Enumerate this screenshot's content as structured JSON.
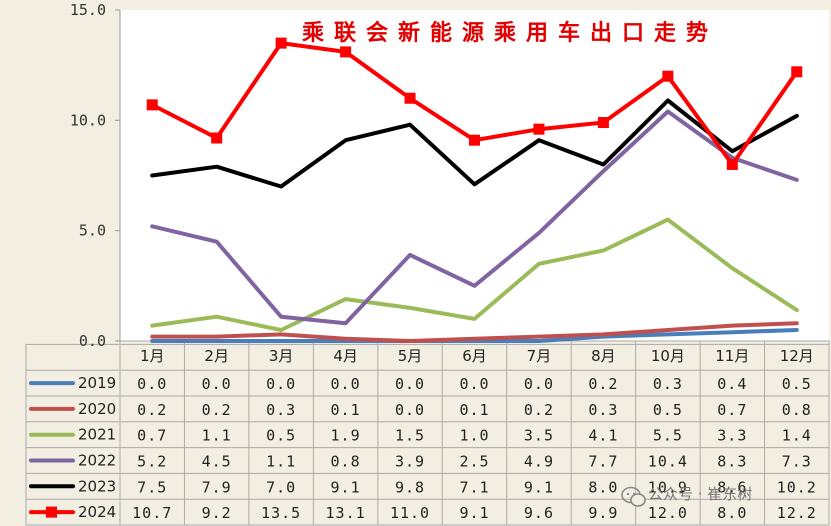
{
  "chart_data": {
    "type": "line",
    "title": "乘联会新能源乘用车出口走势",
    "xlabel": "",
    "ylabel": "",
    "ylim": [
      0,
      15
    ],
    "yticks": [
      "0.0",
      "5.0",
      "10.0",
      "15.0"
    ],
    "categories": [
      "1月",
      "2月",
      "3月",
      "4月",
      "5月",
      "6月",
      "7月",
      "8月",
      "10月",
      "11月",
      "12月"
    ],
    "grid": false,
    "legend": "data-table-left",
    "series": [
      {
        "name": "2019",
        "color": "#4a7ebb",
        "values": [
          0.0,
          0.0,
          0.0,
          0.0,
          0.0,
          0.0,
          0.0,
          0.2,
          0.3,
          0.4,
          0.5
        ],
        "labels": [
          "0.0",
          "0.0",
          "0.0",
          "0.0",
          "0.0",
          "0.0",
          "0.0",
          "0.2",
          "0.3",
          "0.4",
          "0.5"
        ]
      },
      {
        "name": "2020",
        "color": "#c0504d",
        "values": [
          0.2,
          0.2,
          0.3,
          0.1,
          0.0,
          0.1,
          0.2,
          0.3,
          0.5,
          0.7,
          0.8
        ],
        "labels": [
          "0.2",
          "0.2",
          "0.3",
          "0.1",
          "0.0",
          "0.1",
          "0.2",
          "0.3",
          "0.5",
          "0.7",
          "0.8"
        ]
      },
      {
        "name": "2021",
        "color": "#9bbb59",
        "values": [
          0.7,
          1.1,
          0.5,
          1.9,
          1.5,
          1.0,
          3.5,
          4.1,
          5.5,
          3.3,
          1.4
        ],
        "labels": [
          "0.7",
          "1.1",
          "0.5",
          "1.9",
          "1.5",
          "1.0",
          "3.5",
          "4.1",
          "5.5",
          "3.3",
          "1.4"
        ]
      },
      {
        "name": "2022",
        "color": "#8064a2",
        "values": [
          5.2,
          4.5,
          1.1,
          0.8,
          3.9,
          2.5,
          4.9,
          7.7,
          10.4,
          8.3,
          7.3
        ],
        "labels": [
          "5.2",
          "4.5",
          "1.1",
          "0.8",
          "3.9",
          "2.5",
          "4.9",
          "7.7",
          "10.4",
          "8.3",
          "7.3"
        ]
      },
      {
        "name": "2023",
        "color": "#000000",
        "values": [
          7.5,
          7.9,
          7.0,
          9.1,
          9.8,
          7.1,
          9.1,
          8.0,
          10.9,
          8.6,
          10.2
        ],
        "labels": [
          "7.5",
          "7.9",
          "7.0",
          "9.1",
          "9.8",
          "7.1",
          "9.1",
          "8.0",
          "10.9",
          "8.6",
          "10.2"
        ]
      },
      {
        "name": "2024",
        "color": "#ff0000",
        "marker": "square",
        "values": [
          10.7,
          9.2,
          13.5,
          13.1,
          11.0,
          9.1,
          9.6,
          9.9,
          12.0,
          8.0,
          12.2
        ],
        "labels": [
          "10.7",
          "9.2",
          "13.5",
          "13.1",
          "11.0",
          "9.1",
          "9.6",
          "9.9",
          "12.0",
          "8.0",
          "12.2"
        ]
      }
    ]
  },
  "watermark": {
    "text": "公众号 · 崔东树"
  }
}
